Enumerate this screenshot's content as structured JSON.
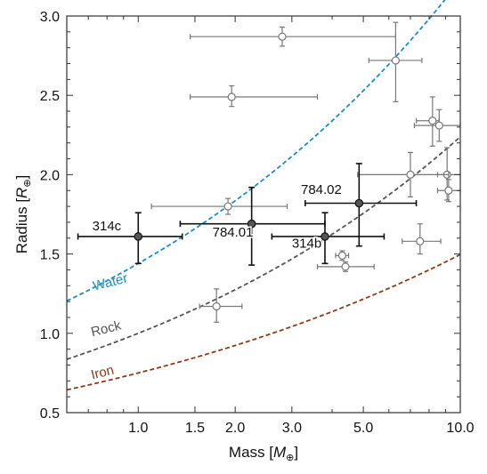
{
  "chart_data": {
    "type": "scatter",
    "xlabel": {
      "text": "Mass [",
      "symbol": "M",
      "sub": "⊕",
      "close": "]"
    },
    "ylabel": {
      "text": "Radius [",
      "symbol": "R",
      "sub": "⊕",
      "close": "]"
    },
    "xscale": "log",
    "xlim": [
      0.6,
      10.0
    ],
    "ylim": [
      0.5,
      3.0
    ],
    "xticks": [
      {
        "value": 1.0,
        "label": "1.0"
      },
      {
        "value": 1.5,
        "label": "1.5"
      },
      {
        "value": 2.0,
        "label": "2.0"
      },
      {
        "value": 3.0,
        "label": "3.0"
      },
      {
        "value": 5.0,
        "label": "5.0"
      },
      {
        "value": 10.0,
        "label": "10.0"
      }
    ],
    "yticks": [
      {
        "value": 0.5,
        "label": "0.5"
      },
      {
        "value": 1.0,
        "label": "1.0"
      },
      {
        "value": 1.5,
        "label": "1.5"
      },
      {
        "value": 2.0,
        "label": "2.0"
      },
      {
        "value": 2.5,
        "label": "2.5"
      },
      {
        "value": 3.0,
        "label": "3.0"
      }
    ],
    "models": [
      {
        "name": "Water",
        "color": "#1a8fbf",
        "r_at_1": 1.44,
        "exponent": 0.35,
        "label_x": 0.73,
        "label_y": 1.27
      },
      {
        "name": "Rock",
        "color": "#555555",
        "r_at_1": 1.0,
        "exponent": 0.35,
        "label_x": 0.72,
        "label_y": 0.98
      },
      {
        "name": "Iron",
        "color": "#8b3a1e",
        "r_at_1": 0.75,
        "exponent": 0.3,
        "label_x": 0.72,
        "label_y": 0.71
      }
    ],
    "highlighted_planets": [
      {
        "name": "314c",
        "x": 1.0,
        "x_err": [
          0.65,
          1.37
        ],
        "y": 1.61,
        "y_err": [
          1.44,
          1.76
        ],
        "label_x": 0.72,
        "label_y": 1.65
      },
      {
        "name": "784.01",
        "x": 2.25,
        "x_err": [
          1.35,
          3.8
        ],
        "y": 1.69,
        "y_err": [
          1.43,
          1.92
        ],
        "label_x": 1.7,
        "label_y": 1.61
      },
      {
        "name": "314b",
        "x": 3.8,
        "x_err": [
          2.6,
          5.8
        ],
        "y": 1.61,
        "y_err": [
          1.44,
          1.76
        ],
        "label_x": 3.0,
        "label_y": 1.54
      },
      {
        "name": "784.02",
        "x": 4.85,
        "x_err": [
          3.3,
          7.3
        ],
        "y": 1.82,
        "y_err": [
          1.55,
          2.07
        ],
        "label_x": 3.2,
        "label_y": 1.88
      }
    ],
    "other_planets": [
      {
        "x": 2.8,
        "x_err": [
          1.45,
          6.3
        ],
        "y": 2.87,
        "y_err": [
          2.81,
          2.93
        ]
      },
      {
        "x": 1.95,
        "x_err": [
          1.45,
          3.6
        ],
        "y": 2.49,
        "y_err": [
          2.43,
          2.56
        ]
      },
      {
        "x": 6.3,
        "x_err": [
          5.2,
          7.6
        ],
        "y": 2.72,
        "y_err": [
          2.46,
          2.96
        ]
      },
      {
        "x": 8.2,
        "x_err": [
          7.3,
          8.6
        ],
        "y": 2.34,
        "y_err": [
          2.18,
          2.49
        ]
      },
      {
        "x": 8.6,
        "x_err": [
          7.2,
          10.0
        ],
        "y": 2.31,
        "y_err": [
          2.21,
          2.41
        ]
      },
      {
        "x": 9.1,
        "x_err": [
          8.5,
          10.0
        ],
        "y": 2.0,
        "y_err": [
          1.84,
          2.17
        ]
      },
      {
        "x": 7.0,
        "x_err": [
          4.8,
          9.2
        ],
        "y": 2.0,
        "y_err": [
          1.86,
          2.14
        ]
      },
      {
        "x": 9.2,
        "x_err": [
          8.5,
          10.0
        ],
        "y": 1.9,
        "y_err": [
          1.83,
          1.97
        ]
      },
      {
        "x": 1.9,
        "x_err": [
          1.1,
          2.9
        ],
        "y": 1.8,
        "y_err": [
          1.75,
          1.85
        ]
      },
      {
        "x": 7.5,
        "x_err": [
          6.6,
          8.7
        ],
        "y": 1.58,
        "y_err": [
          1.5,
          1.69
        ]
      },
      {
        "x": 4.3,
        "x_err": [
          4.1,
          4.5
        ],
        "y": 1.49,
        "y_err": [
          1.46,
          1.52
        ]
      },
      {
        "x": 4.4,
        "x_err": [
          3.6,
          5.4
        ],
        "y": 1.42,
        "y_err": [
          1.39,
          1.45
        ]
      },
      {
        "x": 1.75,
        "x_err": [
          1.55,
          2.1
        ],
        "y": 1.17,
        "y_err": [
          1.07,
          1.28
        ]
      }
    ]
  }
}
